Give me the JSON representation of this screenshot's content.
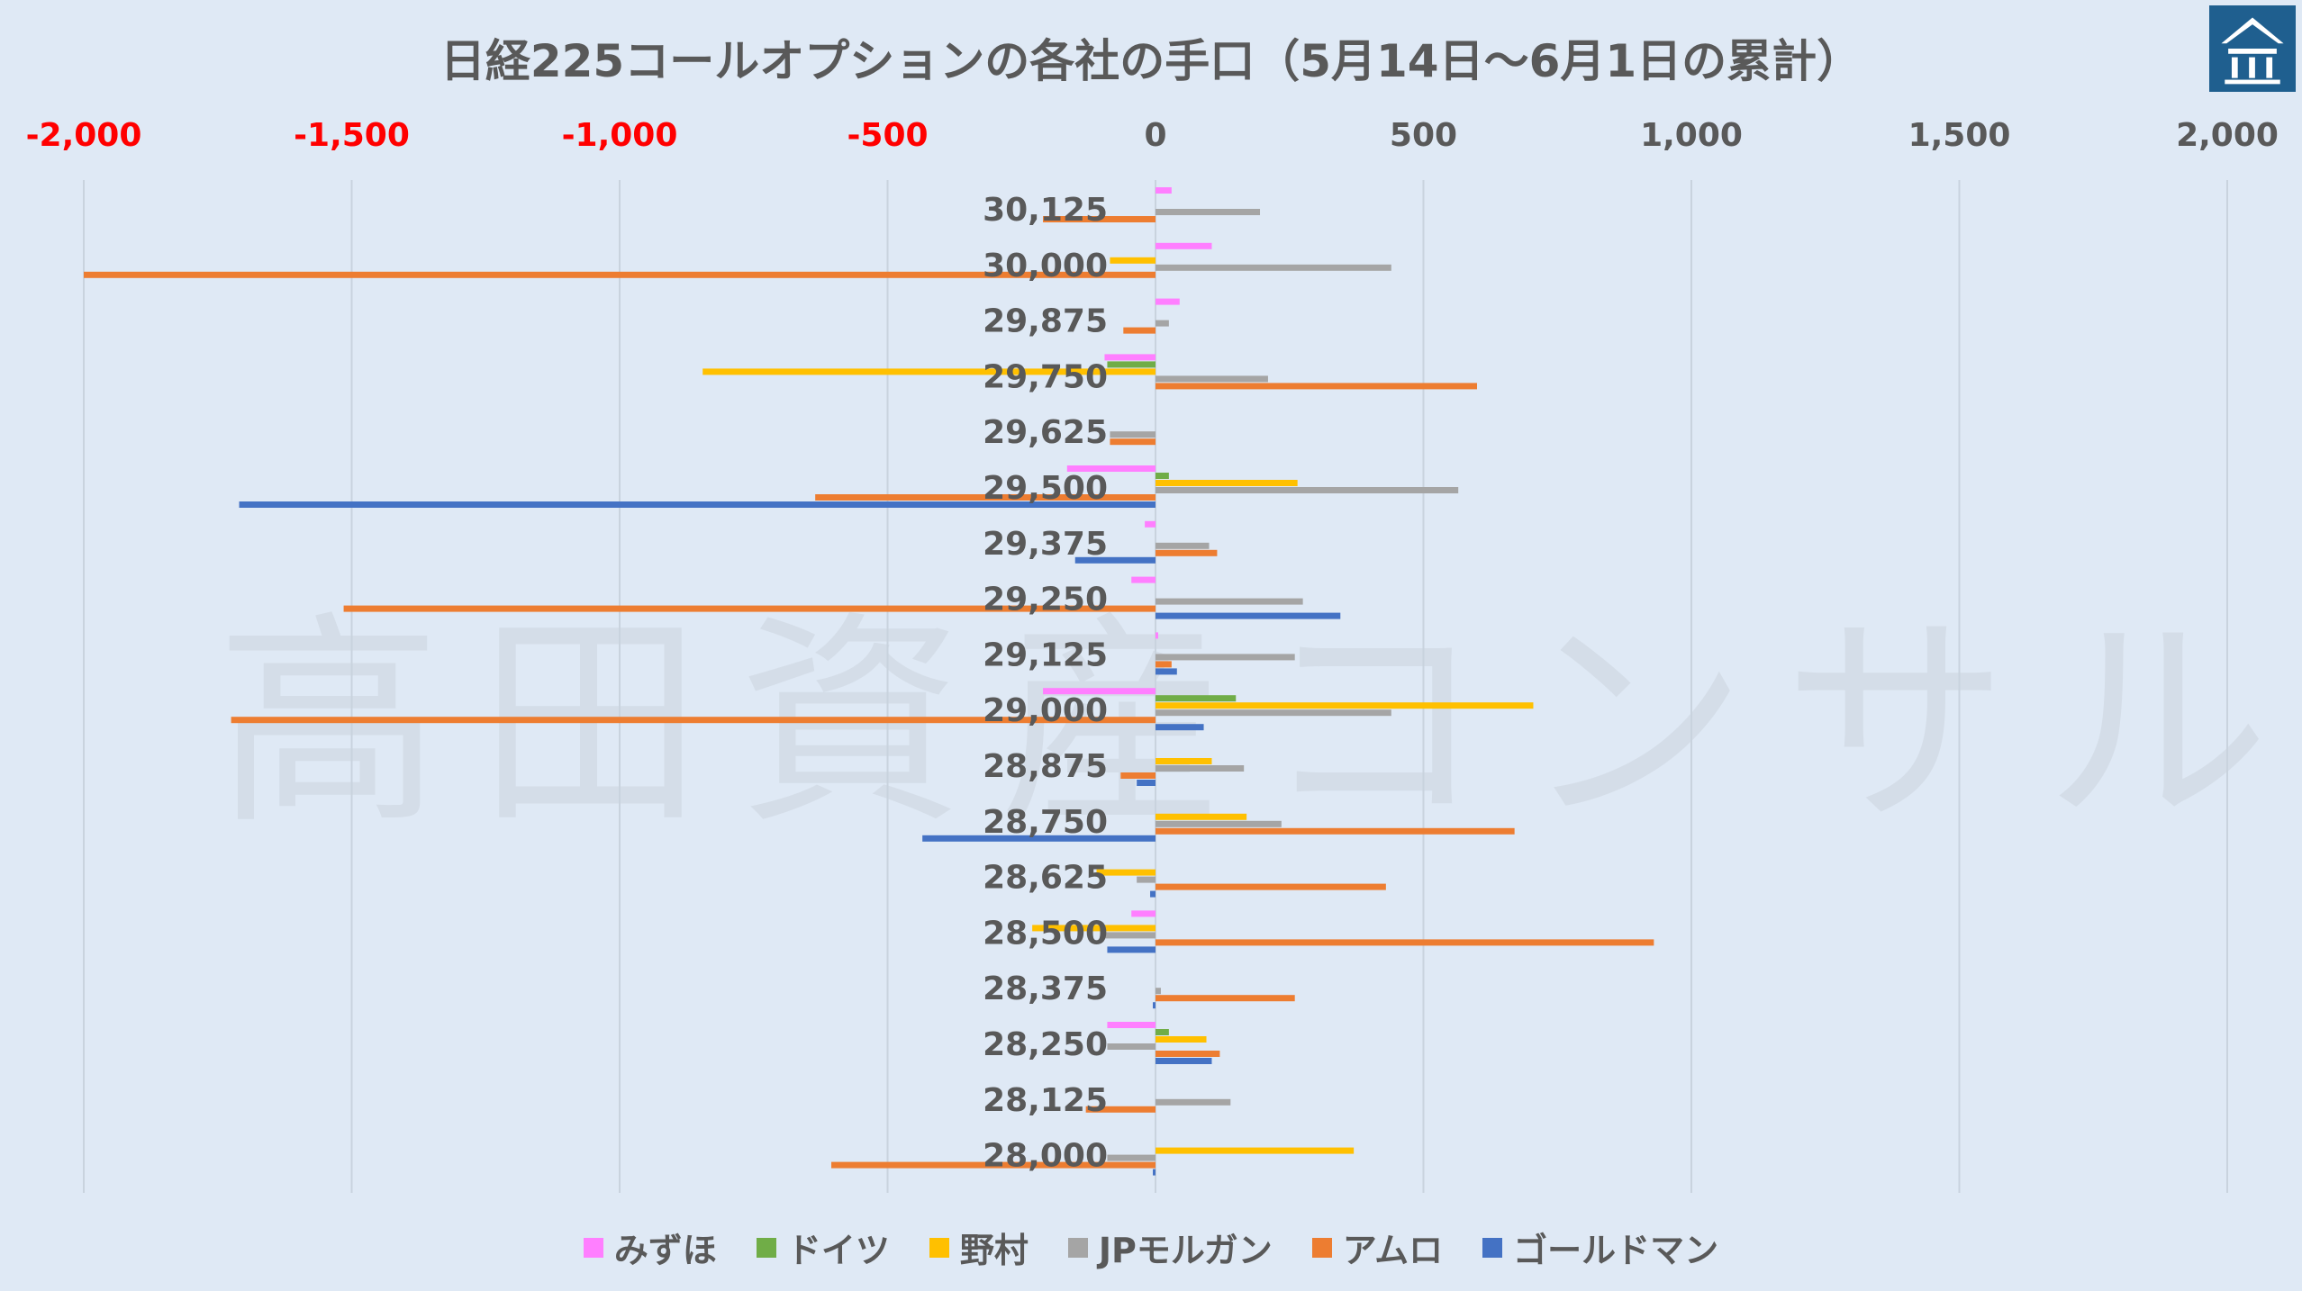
{
  "chart_data": {
    "type": "bar",
    "orientation": "horizontal",
    "title": "日経225コールオプションの各社の手口（5月14日～6月1日の累計）",
    "watermark": "高田資産コンサル",
    "xlim": [
      -2000,
      2000
    ],
    "x_ticks": [
      {
        "value": -2000,
        "label": "-2,000"
      },
      {
        "value": -1500,
        "label": "-1,500"
      },
      {
        "value": -1000,
        "label": "-1,000"
      },
      {
        "value": -500,
        "label": "-500"
      },
      {
        "value": 0,
        "label": "0"
      },
      {
        "value": 500,
        "label": "500"
      },
      {
        "value": 1000,
        "label": "1,000"
      },
      {
        "value": 1500,
        "label": "1,500"
      },
      {
        "value": 2000,
        "label": "2,000"
      }
    ],
    "negative_tick_color": "#ff0000",
    "positive_tick_color": "#595959",
    "grid": true,
    "legend_position": "bottom",
    "categories": [
      "30,125",
      "30,000",
      "29,875",
      "29,750",
      "29,625",
      "29,500",
      "29,375",
      "29,250",
      "29,125",
      "29,000",
      "28,875",
      "28,750",
      "28,625",
      "28,500",
      "28,375",
      "28,250",
      "28,125",
      "28,000"
    ],
    "series": [
      {
        "name": "みずほ",
        "color": "#ff7fff",
        "values": [
          30,
          105,
          45,
          -95,
          0,
          -165,
          -20,
          -45,
          5,
          -210,
          0,
          0,
          0,
          -45,
          0,
          -90,
          0,
          0
        ]
      },
      {
        "name": "ドイツ",
        "color": "#70ad47",
        "values": [
          0,
          0,
          0,
          -90,
          0,
          25,
          0,
          0,
          0,
          150,
          0,
          0,
          0,
          0,
          0,
          25,
          0,
          0
        ]
      },
      {
        "name": "野村",
        "color": "#ffc000",
        "values": [
          0,
          -85,
          0,
          -845,
          0,
          265,
          0,
          0,
          0,
          705,
          105,
          170,
          -110,
          -230,
          0,
          95,
          0,
          370
        ]
      },
      {
        "name": "JPモルガン",
        "color": "#a5a5a5",
        "values": [
          195,
          440,
          25,
          210,
          -85,
          565,
          100,
          275,
          260,
          440,
          165,
          235,
          -35,
          -95,
          10,
          -90,
          140,
          -90
        ]
      },
      {
        "name": "アムロ",
        "color": "#ed7d31",
        "values": [
          -210,
          -2000,
          -60,
          600,
          -85,
          -635,
          115,
          -1515,
          30,
          -1725,
          -65,
          670,
          430,
          930,
          260,
          120,
          -130,
          -605
        ]
      },
      {
        "name": "ゴールドマン",
        "color": "#4472c4",
        "values": [
          0,
          0,
          0,
          0,
          0,
          -1710,
          -150,
          345,
          40,
          90,
          -35,
          -435,
          -10,
          -90,
          -5,
          105,
          0,
          -5
        ]
      }
    ]
  },
  "logo_icon": "building-logo-icon"
}
